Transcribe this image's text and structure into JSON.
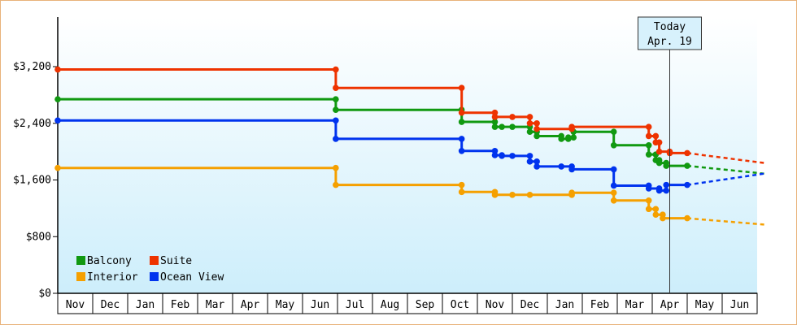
{
  "chart_data": {
    "type": "line",
    "title": "",
    "xlabel": "",
    "ylabel": "",
    "ylim": [
      0,
      3900
    ],
    "yticks": [
      0,
      800,
      1600,
      2400,
      3200
    ],
    "ytick_labels": [
      "$0",
      "$800",
      "$1,600",
      "$2,400",
      "$3,200"
    ],
    "month_labels": [
      "Nov",
      "Dec",
      "Jan",
      "Feb",
      "Mar",
      "Apr",
      "May",
      "Jun",
      "Jul",
      "Aug",
      "Sep",
      "Oct",
      "Nov",
      "Dec",
      "Jan",
      "Feb",
      "Mar",
      "Apr",
      "May",
      "Jun"
    ],
    "grid": false,
    "background_gradient": [
      "#ffffff",
      "#cdeefb"
    ],
    "legend_position": "bottom-left",
    "today_marker": {
      "line1": "Today",
      "line2": "Apr. 19",
      "month_index": 17.5
    },
    "series": [
      {
        "name": "Balcony",
        "color": "#119911",
        "points": [
          [
            0,
            2740
          ],
          [
            7.95,
            2740
          ],
          [
            7.95,
            2590
          ],
          [
            11.55,
            2590
          ],
          [
            11.55,
            2420
          ],
          [
            12.5,
            2420
          ],
          [
            12.5,
            2350
          ],
          [
            12.7,
            2350
          ],
          [
            12.7,
            2350
          ],
          [
            13,
            2350
          ],
          [
            13.5,
            2350
          ],
          [
            13.5,
            2280
          ],
          [
            13.7,
            2280
          ],
          [
            13.7,
            2220
          ],
          [
            14.4,
            2220
          ],
          [
            14.4,
            2180
          ],
          [
            14.6,
            2180
          ],
          [
            14.6,
            2200
          ],
          [
            14.75,
            2200
          ],
          [
            14.75,
            2280
          ],
          [
            15.9,
            2280
          ],
          [
            15.9,
            2090
          ],
          [
            16.9,
            2090
          ],
          [
            16.9,
            1960
          ],
          [
            17.1,
            1960
          ],
          [
            17.1,
            1880
          ],
          [
            17.2,
            1880
          ],
          [
            17.2,
            1840
          ],
          [
            17.4,
            1840
          ],
          [
            17.4,
            1800
          ],
          [
            18,
            1800
          ]
        ],
        "forecast": [
          [
            18,
            1800
          ],
          [
            20.2,
            1690
          ]
        ]
      },
      {
        "name": "Suite",
        "color": "#ee3300",
        "points": [
          [
            0,
            3160
          ],
          [
            7.95,
            3160
          ],
          [
            7.95,
            2900
          ],
          [
            11.55,
            2900
          ],
          [
            11.55,
            2550
          ],
          [
            12.5,
            2550
          ],
          [
            12.5,
            2490
          ],
          [
            13,
            2490
          ],
          [
            13,
            2490
          ],
          [
            13.5,
            2490
          ],
          [
            13.5,
            2400
          ],
          [
            13.7,
            2400
          ],
          [
            13.7,
            2320
          ],
          [
            14.7,
            2320
          ],
          [
            14.7,
            2350
          ],
          [
            16.9,
            2350
          ],
          [
            16.9,
            2220
          ],
          [
            17.1,
            2220
          ],
          [
            17.1,
            2130
          ],
          [
            17.2,
            2130
          ],
          [
            17.2,
            2000
          ],
          [
            17.5,
            2000
          ],
          [
            17.5,
            1980
          ],
          [
            18,
            1980
          ]
        ],
        "forecast": [
          [
            18,
            1980
          ],
          [
            20.2,
            1840
          ]
        ]
      },
      {
        "name": "Interior",
        "color": "#f5a000",
        "points": [
          [
            0,
            1770
          ],
          [
            7.95,
            1770
          ],
          [
            7.95,
            1530
          ],
          [
            11.55,
            1530
          ],
          [
            11.55,
            1430
          ],
          [
            12.5,
            1430
          ],
          [
            12.5,
            1390
          ],
          [
            13,
            1390
          ],
          [
            13,
            1390
          ],
          [
            13.5,
            1390
          ],
          [
            13.5,
            1390
          ],
          [
            14.7,
            1390
          ],
          [
            14.7,
            1420
          ],
          [
            15.9,
            1420
          ],
          [
            15.9,
            1310
          ],
          [
            16.9,
            1310
          ],
          [
            16.9,
            1190
          ],
          [
            17.1,
            1190
          ],
          [
            17.1,
            1110
          ],
          [
            17.3,
            1110
          ],
          [
            17.3,
            1060
          ],
          [
            18,
            1060
          ]
        ],
        "forecast": [
          [
            18,
            1060
          ],
          [
            20.2,
            970
          ]
        ]
      },
      {
        "name": "Ocean View",
        "color": "#0033ee",
        "points": [
          [
            0,
            2440
          ],
          [
            7.95,
            2440
          ],
          [
            7.95,
            2180
          ],
          [
            11.55,
            2180
          ],
          [
            11.55,
            2010
          ],
          [
            12.5,
            2010
          ],
          [
            12.5,
            1950
          ],
          [
            12.7,
            1950
          ],
          [
            12.7,
            1940
          ],
          [
            13,
            1940
          ],
          [
            13.5,
            1940
          ],
          [
            13.5,
            1860
          ],
          [
            13.7,
            1860
          ],
          [
            13.7,
            1790
          ],
          [
            14.4,
            1790
          ],
          [
            14.4,
            1790
          ],
          [
            14.7,
            1790
          ],
          [
            14.7,
            1750
          ],
          [
            15.9,
            1750
          ],
          [
            15.9,
            1520
          ],
          [
            16.9,
            1520
          ],
          [
            16.9,
            1480
          ],
          [
            17.2,
            1480
          ],
          [
            17.2,
            1450
          ],
          [
            17.4,
            1450
          ],
          [
            17.4,
            1530
          ],
          [
            18,
            1530
          ]
        ],
        "forecast": [
          [
            18,
            1530
          ],
          [
            20.2,
            1690
          ]
        ]
      }
    ]
  }
}
